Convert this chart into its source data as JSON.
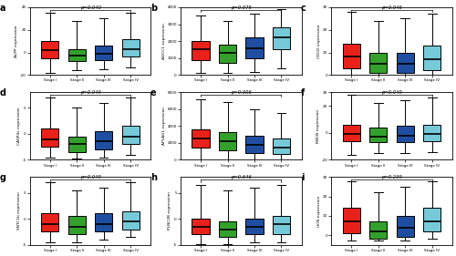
{
  "panels": [
    {
      "label": "a",
      "pval": "p=0.040",
      "ylabel": "ALPP expression",
      "ylim": [
        -20,
        40
      ],
      "yticks": [
        -20,
        0,
        20,
        40
      ],
      "boxes": [
        {
          "med": 2,
          "q1": -5,
          "q3": 10,
          "whislo": -18,
          "whishi": 35
        },
        {
          "med": -3,
          "q1": -8,
          "q3": 3,
          "whislo": -16,
          "whishi": 28
        },
        {
          "med": -1,
          "q1": -7,
          "q3": 6,
          "whislo": -15,
          "whishi": 30
        },
        {
          "med": 3,
          "q1": -4,
          "q3": 12,
          "whislo": -13,
          "whishi": 35
        }
      ]
    },
    {
      "label": "b",
      "pval": "p=0.075",
      "ylabel": "ADCC1 expression",
      "ylim": [
        0,
        4000
      ],
      "yticks": [
        0,
        1000,
        2000,
        3000,
        4000
      ],
      "boxes": [
        {
          "med": 1500,
          "q1": 900,
          "q3": 2000,
          "whislo": 100,
          "whishi": 3500
        },
        {
          "med": 1300,
          "q1": 700,
          "q3": 1800,
          "whislo": 100,
          "whishi": 3200
        },
        {
          "med": 1600,
          "q1": 1000,
          "q3": 2200,
          "whislo": 200,
          "whishi": 3600
        },
        {
          "med": 2200,
          "q1": 1500,
          "q3": 2800,
          "whislo": 400,
          "whishi": 3900
        }
      ]
    },
    {
      "label": "c",
      "pval": "p=0.046",
      "ylabel": "CDCD expression",
      "ylim": [
        0,
        30
      ],
      "yticks": [
        0,
        10,
        20,
        30
      ],
      "boxes": [
        {
          "med": 8,
          "q1": 3,
          "q3": 14,
          "whislo": 0,
          "whishi": 28
        },
        {
          "med": 5,
          "q1": 1,
          "q3": 10,
          "whislo": 0,
          "whishi": 24
        },
        {
          "med": 5,
          "q1": 1,
          "q3": 10,
          "whislo": 0,
          "whishi": 25
        },
        {
          "med": 7,
          "q1": 2,
          "q3": 13,
          "whislo": 0,
          "whishi": 27
        }
      ]
    },
    {
      "label": "d",
      "pval": "p=0.049",
      "ylabel": "CASP4x expression",
      "ylim": [
        -5,
        8
      ],
      "yticks": [
        -5,
        0,
        5
      ],
      "boxes": [
        {
          "med": -1,
          "q1": -2.5,
          "q3": 1,
          "whislo": -4.5,
          "whishi": 7
        },
        {
          "med": -2,
          "q1": -3.5,
          "q3": -0.5,
          "whislo": -4.8,
          "whishi": 5
        },
        {
          "med": -1.5,
          "q1": -3,
          "q3": 0.5,
          "whislo": -4.5,
          "whishi": 6
        },
        {
          "med": -0.5,
          "q1": -2,
          "q3": 1.5,
          "whislo": -4,
          "whishi": 7
        }
      ]
    },
    {
      "label": "e",
      "pval": "p=0.006",
      "ylabel": "APLAG1 expression",
      "ylim": [
        0,
        8000
      ],
      "yticks": [
        0,
        2000,
        4000,
        6000,
        8000
      ],
      "boxes": [
        {
          "med": 2500,
          "q1": 1400,
          "q3": 3600,
          "whislo": 100,
          "whishi": 7200
        },
        {
          "med": 2200,
          "q1": 1100,
          "q3": 3300,
          "whislo": 100,
          "whishi": 6800
        },
        {
          "med": 1800,
          "q1": 800,
          "q3": 2800,
          "whislo": 50,
          "whishi": 6000
        },
        {
          "med": 1500,
          "q1": 700,
          "q3": 2500,
          "whislo": 50,
          "whishi": 5500
        }
      ]
    },
    {
      "label": "f",
      "pval": "p=0.049",
      "ylabel": "RNCB expression",
      "ylim": [
        -20,
        30
      ],
      "yticks": [
        -20,
        0,
        20,
        30
      ],
      "boxes": [
        {
          "med": -1,
          "q1": -6,
          "q3": 6,
          "whislo": -16,
          "whishi": 28
        },
        {
          "med": -3,
          "q1": -7,
          "q3": 4,
          "whislo": -15,
          "whishi": 22
        },
        {
          "med": -2,
          "q1": -7,
          "q3": 5,
          "whislo": -15,
          "whishi": 24
        },
        {
          "med": -1,
          "q1": -6,
          "q3": 6,
          "whislo": -14,
          "whishi": 26
        }
      ]
    },
    {
      "label": "g",
      "pval": "p=0.049",
      "ylabel": "SNTC1b expression",
      "ylim": [
        -5,
        8
      ],
      "yticks": [
        -5,
        0,
        5
      ],
      "boxes": [
        {
          "med": -1,
          "q1": -2.5,
          "q3": 1,
          "whislo": -4.5,
          "whishi": 7
        },
        {
          "med": -1.5,
          "q1": -3,
          "q3": 0.5,
          "whislo": -4.5,
          "whishi": 5.5
        },
        {
          "med": -1,
          "q1": -2.5,
          "q3": 1,
          "whislo": -4,
          "whishi": 6
        },
        {
          "med": -0.5,
          "q1": -2,
          "q3": 1.5,
          "whislo": -3.5,
          "whishi": 7
        }
      ]
    },
    {
      "label": "h",
      "pval": "p=0.646",
      "ylabel": "PLNC2B expression",
      "ylim": [
        -5,
        8
      ],
      "yticks": [
        -5,
        0,
        5
      ],
      "boxes": [
        {
          "med": -1.5,
          "q1": -3,
          "q3": 0,
          "whislo": -4.8,
          "whishi": 6.5
        },
        {
          "med": -2,
          "q1": -3.5,
          "q3": -0.5,
          "whislo": -4.8,
          "whishi": 5.5
        },
        {
          "med": -1.5,
          "q1": -3,
          "q3": 0,
          "whislo": -4.5,
          "whishi": 6
        },
        {
          "med": -1,
          "q1": -3,
          "q3": 0.5,
          "whislo": -4.5,
          "whishi": 6.5
        }
      ]
    },
    {
      "label": "i",
      "pval": "p=0.239",
      "ylabel": "UCN expression",
      "ylim": [
        -5,
        30
      ],
      "yticks": [
        0,
        10,
        20,
        30
      ],
      "boxes": [
        {
          "med": 7,
          "q1": 1,
          "q3": 14,
          "whislo": -3,
          "whishi": 28
        },
        {
          "med": 2,
          "q1": -2,
          "q3": 7,
          "whislo": -3,
          "whishi": 22
        },
        {
          "med": 4,
          "q1": -1,
          "q3": 10,
          "whislo": -3,
          "whishi": 25
        },
        {
          "med": 7,
          "q1": 2,
          "q3": 14,
          "whislo": -2,
          "whishi": 28
        }
      ]
    }
  ],
  "colors": [
    "#e8221a",
    "#33a02c",
    "#1f4ea1",
    "#76c9d8"
  ],
  "stage_labels": [
    "Stage I",
    "Stage II",
    "Stage III",
    "Stage IV"
  ],
  "bg_color": "#ffffff",
  "plot_bg": "#ffffff"
}
